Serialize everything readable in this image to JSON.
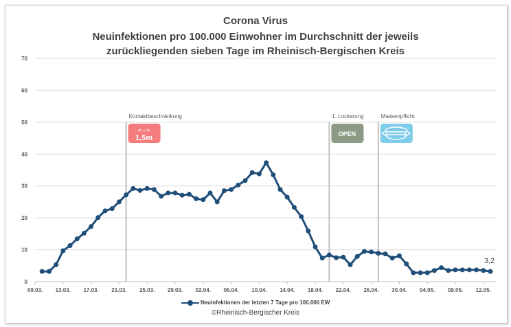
{
  "chart_data": {
    "type": "line",
    "title": [
      "Corona Virus",
      "Neuinfektionen pro 100.000 Einwohner im Durchschnitt der jeweils",
      "zurückliegenden sieben Tage im Rheinisch-Bergischen Kreis"
    ],
    "ylim": [
      0,
      70
    ],
    "yticks": [
      0,
      10,
      20,
      30,
      40,
      50,
      60,
      70
    ],
    "xticks": [
      "09.03.",
      "13.03.",
      "17.03.",
      "21.03.",
      "25.03.",
      "29.03.",
      "02.04.",
      "06.04.",
      "10.04.",
      "14.04.",
      "18.04.",
      "22.04.",
      "26.04.",
      "30.04.",
      "04.05.",
      "08.05.",
      "12.05."
    ],
    "start_day_offset": 1,
    "series": [
      {
        "name": "Neuinfektionen der letzten 7 Tage pro 100.000 EW",
        "color": "#1f4e79",
        "values": [
          3.2,
          3.2,
          5.3,
          9.7,
          11.3,
          13.4,
          15.2,
          17.3,
          20.1,
          22.2,
          22.9,
          25.0,
          27.2,
          29.2,
          28.6,
          29.2,
          28.9,
          26.8,
          27.8,
          27.8,
          27.1,
          27.4,
          26.0,
          25.7,
          27.8,
          25.0,
          28.5,
          28.9,
          30.3,
          31.7,
          34.2,
          33.8,
          37.3,
          33.5,
          28.9,
          26.5,
          23.3,
          20.4,
          15.9,
          10.9,
          7.4,
          8.4,
          7.5,
          7.7,
          5.3,
          7.9,
          9.5,
          9.3,
          8.9,
          8.7,
          7.4,
          8.1,
          5.6,
          2.8,
          2.8,
          2.8,
          3.5,
          4.4,
          3.5,
          3.7,
          3.7,
          3.7,
          3.7,
          3.5,
          3.2
        ]
      }
    ],
    "last_label": "3,2",
    "annotations": [
      {
        "label": "Kontaktbeschränkung",
        "day": 13,
        "badge": "1,5m",
        "badge_arrow": "<---->",
        "color": "#f47c7c"
      },
      {
        "label": "1. Lockerung",
        "day": 42,
        "badge": "OPEN",
        "color": "#8c9a86"
      },
      {
        "label": "Maskenpflicht",
        "day": 49,
        "badge": "",
        "color": "#7ecbea"
      }
    ],
    "legend": "Neuinfektionen der letzten 7 Tage pro 100.000 EW",
    "legend_position": "bottom",
    "copyright": "©Rheinisch-Bergischer Kreis",
    "grid": true
  }
}
